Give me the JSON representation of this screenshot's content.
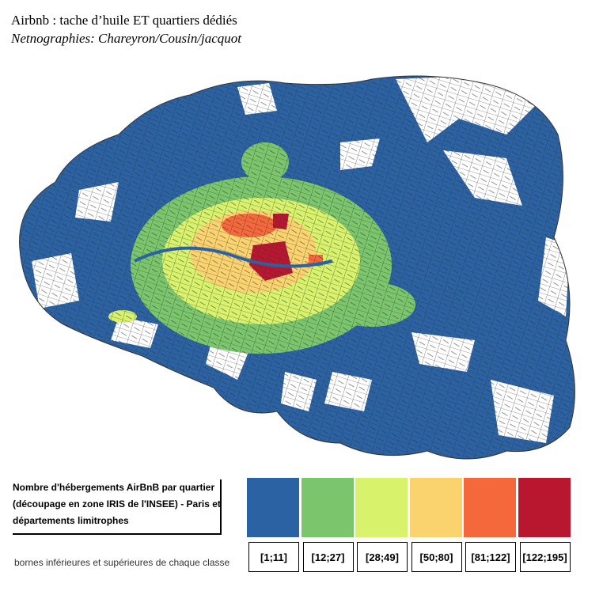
{
  "header": {
    "title": "Airbnb : tache d’huile ET quartiers dédiés",
    "subtitle": "Netnographies: Chareyron/Cousin/jacquot"
  },
  "legend": {
    "title_lines": [
      "Nombre d'hébergements AirBnB par quartier",
      "(découpage en zone IRIS de l'INSEE) - Paris et",
      "départements limitrophes"
    ],
    "note": "bornes inférieures et supérieures de chaque classe",
    "classes": [
      {
        "label": "[1;11]",
        "color": "#2b62a3"
      },
      {
        "label": "[12;27]",
        "color": "#7bc66c"
      },
      {
        "label": "[28;49]",
        "color": "#d8f26c"
      },
      {
        "label": "[50;80]",
        "color": "#fbd36e"
      },
      {
        "label": "[81;122]",
        "color": "#f4683b"
      },
      {
        "label": "[122;195]",
        "color": "#b8172f"
      }
    ]
  }
}
